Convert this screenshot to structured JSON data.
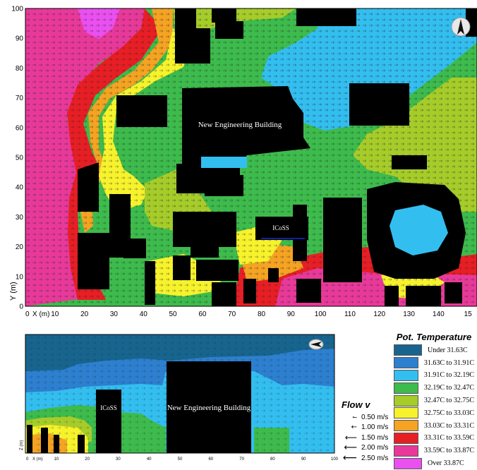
{
  "top_map": {
    "y_axis_label": "Y (m)",
    "x_axis_label": "X (m)",
    "y_ticks": [
      "0",
      "10",
      "20",
      "30",
      "40",
      "50",
      "60",
      "70",
      "80",
      "90",
      "100"
    ],
    "x_ticks": [
      "10",
      "20",
      "30",
      "40",
      "50",
      "60",
      "70",
      "80",
      "90",
      "100",
      "110",
      "120",
      "130",
      "140",
      "15"
    ],
    "x_origin_label": "0",
    "building_labels": {
      "main": "New Engineering Building",
      "icoss": "ICoSS"
    }
  },
  "section_view": {
    "z_axis_label": "Z (m)",
    "x_axis_label": "X (m)",
    "x_ticks": [
      "10",
      "20",
      "30",
      "40",
      "50",
      "60",
      "70",
      "80",
      "90",
      "100"
    ],
    "x_origin_label": "0",
    "building_labels": {
      "main": "New Engineering Building",
      "icoss": "ICoSS"
    }
  },
  "legend": {
    "title": "Pot. Temperature",
    "items": [
      {
        "label": "Under  31.63C",
        "color": "#17658f"
      },
      {
        "label": "31.63C to 31.91C",
        "color": "#2d7fcf"
      },
      {
        "label": "31.91C to 32.19C",
        "color": "#33bef0"
      },
      {
        "label": "32.19C to 32.47C",
        "color": "#3dbb4c"
      },
      {
        "label": "32.47C to 32.75C",
        "color": "#a6cc2a"
      },
      {
        "label": "32.75C to 33.03C",
        "color": "#f6f22c"
      },
      {
        "label": "33.03C to 33.31C",
        "color": "#f4a322"
      },
      {
        "label": "33.31C to 33.59C",
        "color": "#e81e25"
      },
      {
        "label": "33.59C to 33.87C",
        "color": "#e8399a"
      },
      {
        "label": "Over  33.87C",
        "color": "#ea4ff0"
      }
    ]
  },
  "flow_legend": {
    "title": "Flow v",
    "items": [
      {
        "label": "0.50 m/s"
      },
      {
        "label": "1.00 m/s"
      },
      {
        "label": "1.50 m/s"
      },
      {
        "label": "2.00 m/s"
      },
      {
        "label": "2.50 m/s"
      }
    ]
  }
}
